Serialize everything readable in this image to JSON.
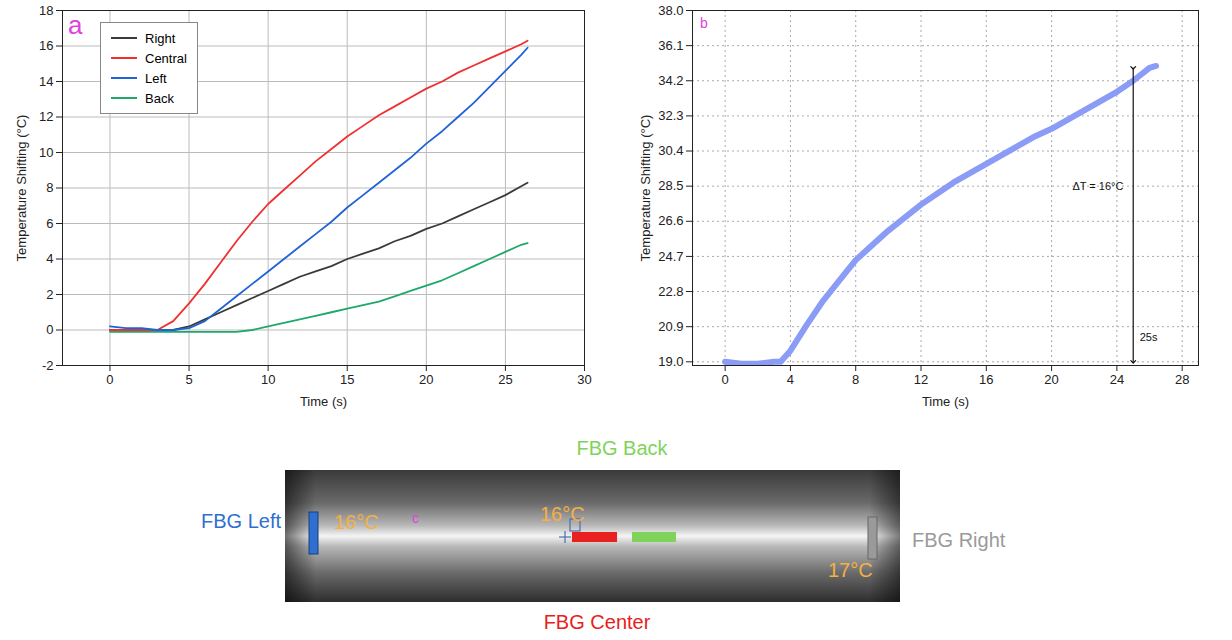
{
  "chart_data": [
    {
      "type": "line",
      "panel_label": "a",
      "x_label": "Time (s)",
      "y_label": "Temperature Shifting (°C)",
      "x": [
        0,
        1,
        2,
        3,
        4,
        5,
        6,
        7,
        8,
        9,
        10,
        11,
        12,
        13,
        14,
        15,
        16,
        17,
        18,
        19,
        20,
        21,
        22,
        23,
        24,
        25,
        26,
        26.4
      ],
      "series": [
        {
          "name": "Right",
          "color": "#3a3a3a",
          "values": [
            0,
            0,
            0,
            0,
            0,
            0.2,
            0.6,
            1.0,
            1.4,
            1.8,
            2.2,
            2.6,
            3.0,
            3.3,
            3.6,
            4.0,
            4.3,
            4.6,
            5.0,
            5.3,
            5.7,
            6.0,
            6.4,
            6.8,
            7.2,
            7.6,
            8.1,
            8.3
          ]
        },
        {
          "name": "Central",
          "color": "#f03030",
          "values": [
            0,
            0,
            0,
            0,
            0.5,
            1.5,
            2.6,
            3.8,
            5.0,
            6.1,
            7.1,
            7.9,
            8.7,
            9.5,
            10.2,
            10.9,
            11.5,
            12.1,
            12.6,
            13.1,
            13.6,
            14.0,
            14.5,
            14.9,
            15.3,
            15.7,
            16.1,
            16.3
          ]
        },
        {
          "name": "Left",
          "color": "#1f63d6",
          "values": [
            0.2,
            0.1,
            0.1,
            0,
            0,
            0.1,
            0.5,
            1.2,
            1.9,
            2.6,
            3.3,
            4.0,
            4.7,
            5.4,
            6.1,
            6.9,
            7.6,
            8.3,
            9.0,
            9.7,
            10.5,
            11.2,
            12.0,
            12.8,
            13.7,
            14.6,
            15.5,
            15.9
          ]
        },
        {
          "name": "Back",
          "color": "#1fa86a",
          "values": [
            -0.1,
            -0.1,
            -0.1,
            -0.1,
            -0.1,
            -0.1,
            -0.1,
            -0.1,
            -0.1,
            0,
            0.2,
            0.4,
            0.6,
            0.8,
            1.0,
            1.2,
            1.4,
            1.6,
            1.9,
            2.2,
            2.5,
            2.8,
            3.2,
            3.6,
            4.0,
            4.4,
            4.8,
            4.9
          ]
        }
      ],
      "xlim": [
        -3,
        30
      ],
      "xticks": [
        0,
        5,
        10,
        15,
        20,
        25,
        30
      ],
      "ylim": [
        -2,
        18
      ],
      "yticks": [
        -2,
        0,
        2,
        4,
        6,
        8,
        10,
        12,
        14,
        16,
        18
      ],
      "grid": true,
      "legend": "top-left"
    },
    {
      "type": "line",
      "panel_label": "b",
      "x_label": "Time (s)",
      "y_label": "Temperature Shifting (°C)",
      "x": [
        0,
        1,
        2,
        3,
        3.4,
        4,
        5,
        6,
        7,
        8,
        9,
        10,
        11,
        12,
        13,
        14,
        15,
        16,
        17,
        18,
        19,
        20,
        21,
        22,
        23,
        24,
        25,
        26,
        26.4
      ],
      "values": [
        19.0,
        18.9,
        18.9,
        19.0,
        19.0,
        19.6,
        21.0,
        22.3,
        23.4,
        24.5,
        25.3,
        26.1,
        26.8,
        27.5,
        28.1,
        28.7,
        29.2,
        29.7,
        30.2,
        30.7,
        31.2,
        31.6,
        32.1,
        32.6,
        33.1,
        33.6,
        34.2,
        34.9,
        35.0
      ],
      "color": "#8a9cf5",
      "xlim": [
        -2,
        29
      ],
      "xticks": [
        0,
        4,
        8,
        12,
        16,
        20,
        24,
        28
      ],
      "ylim": [
        18.8,
        38.0
      ],
      "yticks": [
        {
          "value": 19.0,
          "label": "19.0"
        },
        {
          "value": 20.9,
          "label": "20.9"
        },
        {
          "value": 22.8,
          "label": "22.8"
        },
        {
          "value": 24.7,
          "label": "24.7"
        },
        {
          "value": 26.6,
          "label": "26.6"
        },
        {
          "value": 28.5,
          "label": "28.5"
        },
        {
          "value": 30.4,
          "label": "30.4"
        },
        {
          "value": 32.3,
          "label": "32.3"
        },
        {
          "value": 34.2,
          "label": "34.2"
        },
        {
          "value": 36.1,
          "label": "36.1"
        },
        {
          "value": 38.0,
          "label": "38.0"
        }
      ],
      "grid": true,
      "arrow": {
        "x": 25,
        "y1": 34.9,
        "y2": 19.0
      },
      "annotations": [
        {
          "text": "ΔT = 16°C",
          "x": 24.4,
          "y": 28.5
        },
        {
          "text": "25s",
          "x": 25.4,
          "y": 20.3
        }
      ]
    }
  ],
  "panel_c": {
    "panel_label": "c",
    "sensors": [
      {
        "label": "FBG Back",
        "color": "#7fd35a"
      },
      {
        "label": "FBG Left",
        "color": "#2f6fd0"
      },
      {
        "label": "FBG Right",
        "color": "#9a9a9a"
      },
      {
        "label": "FBG Center",
        "color": "#e82020"
      }
    ],
    "temperatures": [
      {
        "label": "16°C",
        "color": "#f5b041"
      },
      {
        "label": "16°C",
        "color": "#f5b041"
      },
      {
        "label": "17°C",
        "color": "#f5b041"
      }
    ]
  }
}
